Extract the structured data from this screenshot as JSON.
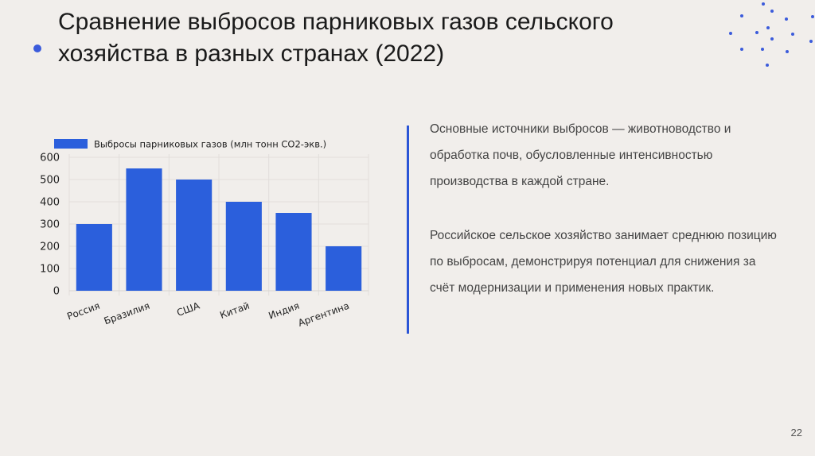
{
  "title": "Сравнение выбросов парниковых газов сельского хозяйства в разных странах (2022)",
  "paragraphs": [
    "Основные источники выбросов — животноводство и обработка почв, обусловленные интенсивностью производства в каждой стране.",
    "Российское сельское хозяйство занимает среднюю позицию по выбросам, демонстрируя потенциал для снижения за счёт модернизации и применения новых практик."
  ],
  "page_number": "22",
  "colors": {
    "accent": "#2b5fdc",
    "background": "#f1eeeb"
  },
  "chart_data": {
    "type": "bar",
    "title": "",
    "categories": [
      "Россия",
      "Бразилия",
      "США",
      "Китай",
      "Индия",
      "Аргентина"
    ],
    "series": [
      {
        "name": "Выбросы парниковых газов (млн тонн CO2-экв.)",
        "values": [
          300,
          550,
          500,
          400,
          350,
          200
        ]
      }
    ],
    "xlabel": "",
    "ylabel": "",
    "ylim": [
      0,
      600
    ],
    "yticks": [
      "0",
      "100",
      "200",
      "300",
      "400",
      "500",
      "600"
    ],
    "grid": true,
    "legend": "top"
  }
}
